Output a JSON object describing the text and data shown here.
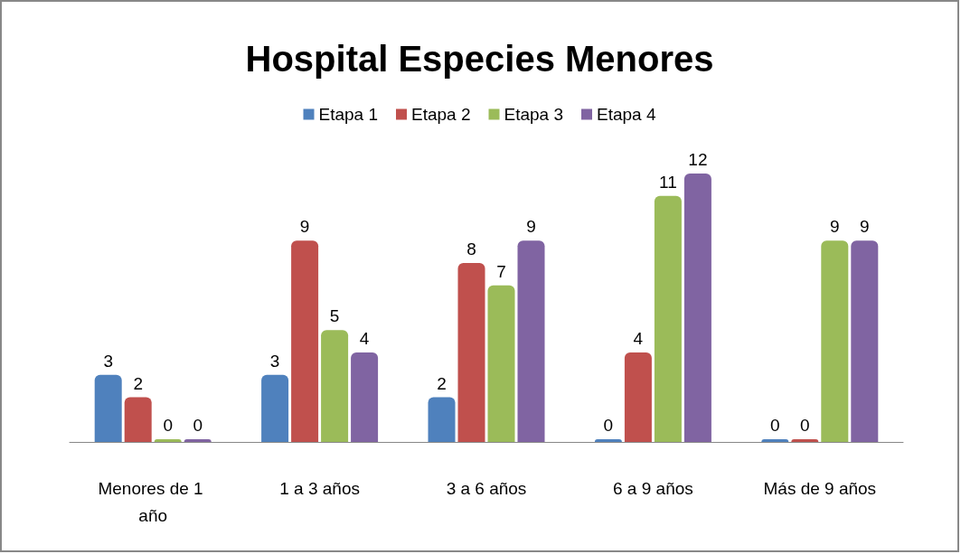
{
  "chart_data": {
    "type": "bar",
    "title": "Hospital Especies Menores",
    "categories": [
      "Menores de 1 año",
      "1 a 3 años",
      "3 a 6 años",
      "6 a 9 años",
      "Más de 9 años"
    ],
    "series": [
      {
        "name": "Etapa 1",
        "color": "#4f81bd",
        "values": [
          3,
          3,
          2,
          0,
          0
        ]
      },
      {
        "name": "Etapa 2",
        "color": "#c0504d",
        "values": [
          2,
          9,
          8,
          4,
          0
        ]
      },
      {
        "name": "Etapa 3",
        "color": "#9bbb59",
        "values": [
          0,
          5,
          7,
          11,
          9
        ]
      },
      {
        "name": "Etapa 4",
        "color": "#8064a2",
        "values": [
          0,
          4,
          9,
          12,
          9
        ]
      }
    ],
    "data_labels": true,
    "legend": "top"
  }
}
